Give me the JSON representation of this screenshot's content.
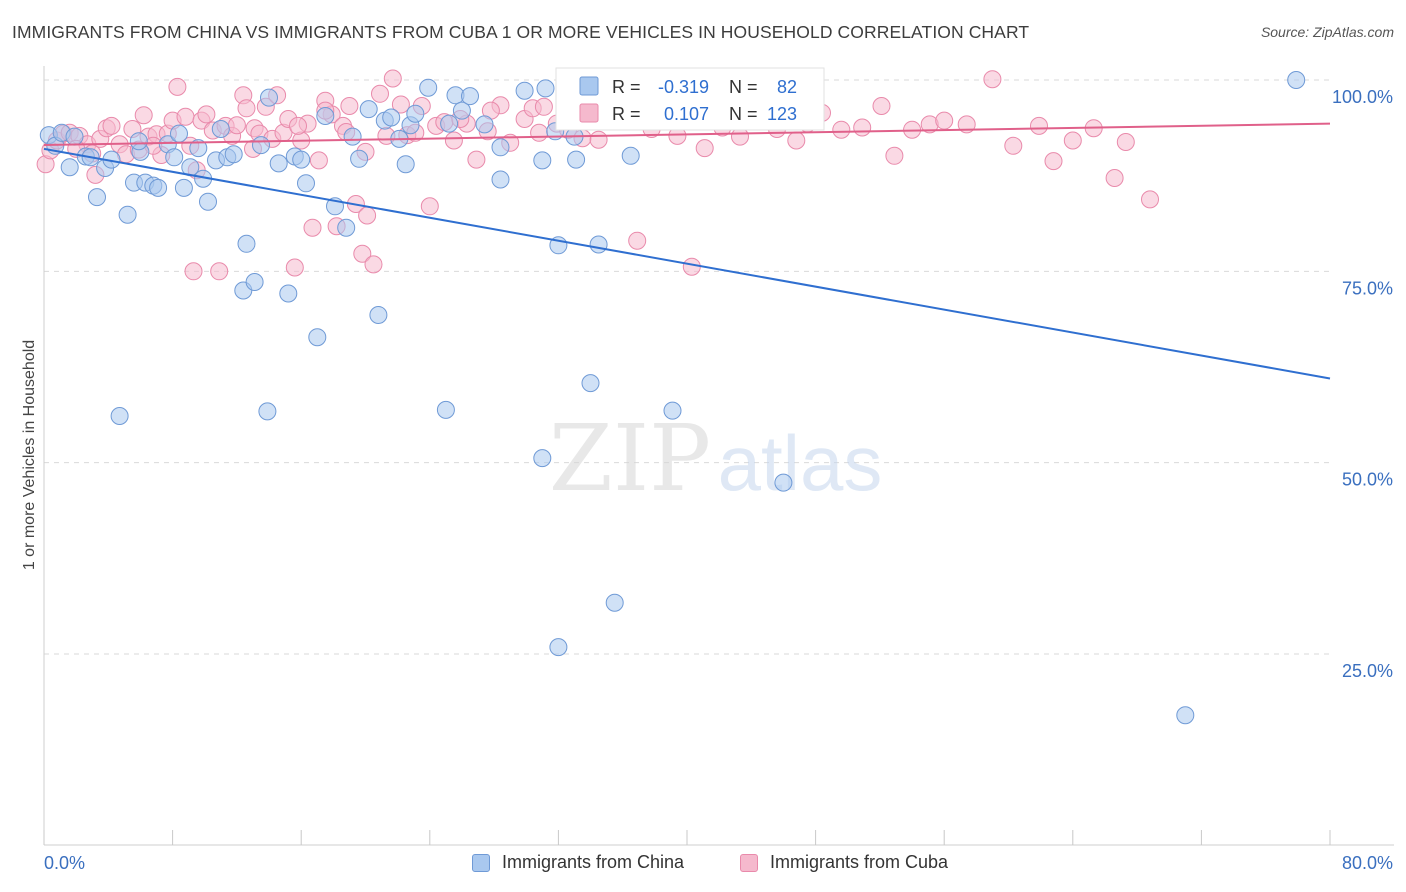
{
  "title": "IMMIGRANTS FROM CHINA VS IMMIGRANTS FROM CUBA 1 OR MORE VEHICLES IN HOUSEHOLD CORRELATION CHART",
  "source": "Source: ZipAtlas.com",
  "watermark": {
    "zip": "ZIP",
    "atlas": "atlas"
  },
  "colors": {
    "china_fill": "#a9c8ef",
    "china_stroke": "#6f9ad6",
    "china_line": "#2f6fd0",
    "cuba_fill": "#f5b9cd",
    "cuba_stroke": "#e98aab",
    "cuba_line": "#e0608a",
    "grid": "#d9d9d9",
    "axis_text": "#4a7cc7",
    "tick_text": "#3a6fbf"
  },
  "stats_legend": {
    "china": {
      "r_label": "R =",
      "r_value": "-0.319",
      "n_label": "N =",
      "n_value": "82"
    },
    "cuba": {
      "r_label": "R =",
      "r_value": "0.107",
      "n_label": "N =",
      "n_value": "123"
    }
  },
  "legend": {
    "china": "Immigrants from China",
    "cuba": "Immigrants from Cuba"
  },
  "chart_data": {
    "type": "scatter",
    "title": "IMMIGRANTS FROM CHINA VS IMMIGRANTS FROM CUBA 1 OR MORE VEHICLES IN HOUSEHOLD CORRELATION CHART",
    "xlabel": "",
    "ylabel": "1 or more Vehicles in Household",
    "xlim": [
      0,
      80
    ],
    "ylim": [
      0,
      102
    ],
    "x_tick_labels": {
      "left": "0.0%",
      "right": "80.0%"
    },
    "y_ticks": [
      {
        "value": 100,
        "label": "100.0%"
      },
      {
        "value": 75,
        "label": "75.0%"
      },
      {
        "value": 50,
        "label": "50.0%"
      },
      {
        "value": 25,
        "label": "25.0%"
      }
    ],
    "series": [
      {
        "name": "Immigrants from China",
        "trend": {
          "x0": 0,
          "y0": 91.0,
          "x1": 80,
          "y1": 61.0
        },
        "points": [
          [
            0.3,
            92.8
          ],
          [
            0.7,
            91.4
          ],
          [
            1.1,
            93.1
          ],
          [
            1.6,
            88.6
          ],
          [
            1.9,
            92.6
          ],
          [
            2.6,
            90.0
          ],
          [
            2.9,
            89.9
          ],
          [
            3.3,
            84.7
          ],
          [
            3.8,
            88.5
          ],
          [
            4.2,
            89.6
          ],
          [
            4.7,
            56.1
          ],
          [
            5.2,
            82.4
          ],
          [
            5.6,
            86.6
          ],
          [
            6.0,
            90.6
          ],
          [
            6.3,
            86.6
          ],
          [
            6.8,
            86.2
          ],
          [
            7.1,
            85.9
          ],
          [
            7.7,
            91.6
          ],
          [
            8.1,
            89.9
          ],
          [
            8.4,
            93.0
          ],
          [
            8.7,
            85.9
          ],
          [
            9.1,
            88.6
          ],
          [
            9.6,
            91.1
          ],
          [
            9.9,
            87.1
          ],
          [
            10.2,
            84.1
          ],
          [
            10.7,
            89.5
          ],
          [
            11.0,
            93.6
          ],
          [
            11.4,
            89.9
          ],
          [
            11.8,
            90.3
          ],
          [
            12.4,
            72.5
          ],
          [
            12.6,
            78.6
          ],
          [
            13.1,
            73.6
          ],
          [
            13.5,
            91.5
          ],
          [
            13.9,
            56.7
          ],
          [
            14.0,
            97.7
          ],
          [
            14.6,
            89.1
          ],
          [
            15.2,
            72.1
          ],
          [
            15.6,
            90.0
          ],
          [
            16.0,
            89.6
          ],
          [
            16.3,
            86.5
          ],
          [
            17.0,
            66.4
          ],
          [
            17.5,
            95.3
          ],
          [
            18.1,
            83.5
          ],
          [
            18.8,
            80.7
          ],
          [
            19.2,
            92.6
          ],
          [
            19.6,
            89.7
          ],
          [
            20.2,
            96.2
          ],
          [
            20.8,
            69.3
          ],
          [
            21.2,
            94.7
          ],
          [
            21.6,
            95.1
          ],
          [
            22.1,
            92.3
          ],
          [
            22.8,
            94.1
          ],
          [
            23.1,
            95.6
          ],
          [
            23.9,
            99.0
          ],
          [
            25.0,
            56.9
          ],
          [
            25.2,
            94.3
          ],
          [
            25.6,
            98.0
          ],
          [
            26.0,
            96.0
          ],
          [
            26.5,
            97.9
          ],
          [
            27.4,
            94.2
          ],
          [
            28.4,
            87.0
          ],
          [
            28.4,
            91.2
          ],
          [
            29.9,
            98.6
          ],
          [
            31.0,
            50.6
          ],
          [
            31.0,
            89.5
          ],
          [
            31.2,
            98.9
          ],
          [
            32.0,
            25.9
          ],
          [
            32.0,
            78.4
          ],
          [
            33.0,
            92.6
          ],
          [
            33.1,
            89.6
          ],
          [
            34.0,
            60.4
          ],
          [
            34.5,
            78.5
          ],
          [
            35.5,
            31.7
          ],
          [
            36.5,
            90.1
          ],
          [
            36.6,
            95.1
          ],
          [
            39.1,
            56.8
          ],
          [
            46.0,
            47.4
          ],
          [
            71.0,
            17.0
          ],
          [
            77.9,
            100.0
          ],
          [
            31.8,
            93.3
          ],
          [
            22.5,
            89.0
          ],
          [
            5.9,
            92.0
          ]
        ]
      },
      {
        "name": "Immigrants from Cuba",
        "trend": {
          "x0": 0,
          "y0": 91.5,
          "x1": 80,
          "y1": 94.3
        },
        "points": [
          [
            0.1,
            89.0
          ],
          [
            0.4,
            90.8
          ],
          [
            0.8,
            92.1
          ],
          [
            1.2,
            93.0
          ],
          [
            1.6,
            93.1
          ],
          [
            2.2,
            92.7
          ],
          [
            2.7,
            91.6
          ],
          [
            3.2,
            87.6
          ],
          [
            3.5,
            92.3
          ],
          [
            3.9,
            93.7
          ],
          [
            4.2,
            94.0
          ],
          [
            4.7,
            91.6
          ],
          [
            5.1,
            90.3
          ],
          [
            5.5,
            93.6
          ],
          [
            5.9,
            90.9
          ],
          [
            6.2,
            95.4
          ],
          [
            6.5,
            92.6
          ],
          [
            7.0,
            92.9
          ],
          [
            7.3,
            90.2
          ],
          [
            7.7,
            93.0
          ],
          [
            8.0,
            94.7
          ],
          [
            8.3,
            99.1
          ],
          [
            8.8,
            95.2
          ],
          [
            9.1,
            91.4
          ],
          [
            9.5,
            88.2
          ],
          [
            9.8,
            94.7
          ],
          [
            10.1,
            95.5
          ],
          [
            10.5,
            93.4
          ],
          [
            10.9,
            75.0
          ],
          [
            11.3,
            94.0
          ],
          [
            11.7,
            92.7
          ],
          [
            12.0,
            94.1
          ],
          [
            12.4,
            98.0
          ],
          [
            12.6,
            96.3
          ],
          [
            13.1,
            93.7
          ],
          [
            13.4,
            93.0
          ],
          [
            13.8,
            96.5
          ],
          [
            14.2,
            92.3
          ],
          [
            14.5,
            98.0
          ],
          [
            14.9,
            93.1
          ],
          [
            15.2,
            94.9
          ],
          [
            15.6,
            75.5
          ],
          [
            16.0,
            92.1
          ],
          [
            16.4,
            94.3
          ],
          [
            16.7,
            80.7
          ],
          [
            17.1,
            89.5
          ],
          [
            17.5,
            97.3
          ],
          [
            17.9,
            95.5
          ],
          [
            18.2,
            80.9
          ],
          [
            18.6,
            94.0
          ],
          [
            19.0,
            96.6
          ],
          [
            19.4,
            83.8
          ],
          [
            19.8,
            77.3
          ],
          [
            20.1,
            82.3
          ],
          [
            20.5,
            75.9
          ],
          [
            20.9,
            98.2
          ],
          [
            21.3,
            92.7
          ],
          [
            21.7,
            100.2
          ],
          [
            22.2,
            96.8
          ],
          [
            22.6,
            92.8
          ],
          [
            23.1,
            93.1
          ],
          [
            23.5,
            96.6
          ],
          [
            24.0,
            83.5
          ],
          [
            24.4,
            94.0
          ],
          [
            24.9,
            94.5
          ],
          [
            25.5,
            92.1
          ],
          [
            26.3,
            94.3
          ],
          [
            26.9,
            89.6
          ],
          [
            27.6,
            93.3
          ],
          [
            28.4,
            96.7
          ],
          [
            29.0,
            91.8
          ],
          [
            29.9,
            94.9
          ],
          [
            30.4,
            96.3
          ],
          [
            31.1,
            96.5
          ],
          [
            31.9,
            94.3
          ],
          [
            32.6,
            93.5
          ],
          [
            33.5,
            92.4
          ],
          [
            34.5,
            92.2
          ],
          [
            35.4,
            99.6
          ],
          [
            36.2,
            95.3
          ],
          [
            36.9,
            79.0
          ],
          [
            37.8,
            93.6
          ],
          [
            38.5,
            95.4
          ],
          [
            39.4,
            92.7
          ],
          [
            40.3,
            75.6
          ],
          [
            41.1,
            91.1
          ],
          [
            42.2,
            93.8
          ],
          [
            43.3,
            92.6
          ],
          [
            44.4,
            95.1
          ],
          [
            45.6,
            93.6
          ],
          [
            46.8,
            92.1
          ],
          [
            47.5,
            94.3
          ],
          [
            48.4,
            95.7
          ],
          [
            49.6,
            93.5
          ],
          [
            50.9,
            93.8
          ],
          [
            52.1,
            96.6
          ],
          [
            52.9,
            90.1
          ],
          [
            54.0,
            93.5
          ],
          [
            55.1,
            94.2
          ],
          [
            56.0,
            94.7
          ],
          [
            57.4,
            94.2
          ],
          [
            59.0,
            100.1
          ],
          [
            60.3,
            91.4
          ],
          [
            61.9,
            94.0
          ],
          [
            62.8,
            89.4
          ],
          [
            64.0,
            92.1
          ],
          [
            65.3,
            93.7
          ],
          [
            66.6,
            87.2
          ],
          [
            67.3,
            91.9
          ],
          [
            68.8,
            84.4
          ],
          [
            2.0,
            91.0
          ],
          [
            3.0,
            90.4
          ],
          [
            6.8,
            91.4
          ],
          [
            9.3,
            75.0
          ],
          [
            13.0,
            91.0
          ],
          [
            15.8,
            94.0
          ],
          [
            17.5,
            96.0
          ],
          [
            18.8,
            93.2
          ],
          [
            20.0,
            90.6
          ],
          [
            25.9,
            94.9
          ],
          [
            27.8,
            96.0
          ],
          [
            30.8,
            93.1
          ],
          [
            33.9,
            95.0
          ]
        ]
      }
    ]
  }
}
